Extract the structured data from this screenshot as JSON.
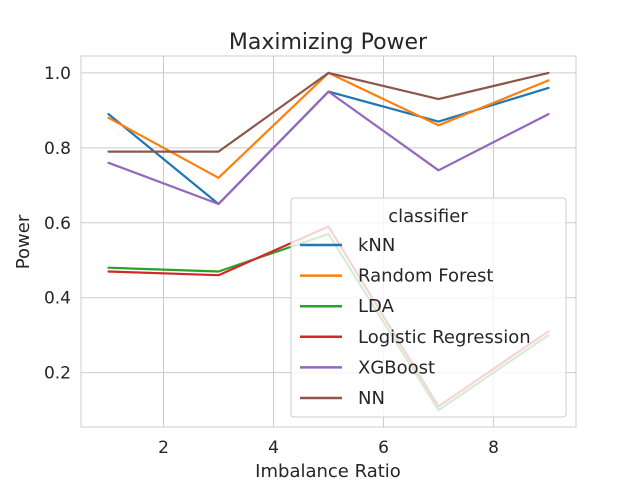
{
  "chart_data": {
    "type": "line",
    "title": "Maximizing Power",
    "xlabel": "Imbalance Ratio",
    "ylabel": "Power",
    "x": [
      1,
      3,
      5,
      7,
      9
    ],
    "xlim": [
      0.5,
      9.5
    ],
    "ylim": [
      0.055,
      1.045
    ],
    "xticks": [
      2,
      4,
      6,
      8
    ],
    "yticks": [
      0.2,
      0.4,
      0.6,
      0.8,
      1.0
    ],
    "xtick_labels": [
      "2",
      "4",
      "6",
      "8"
    ],
    "ytick_labels": [
      "0.2",
      "0.4",
      "0.6",
      "0.8",
      "1.0"
    ],
    "grid": true,
    "legend": {
      "title": "classifier",
      "position": "lower-right"
    },
    "series": [
      {
        "name": "kNN",
        "color": "#1f77b4",
        "values": [
          0.89,
          0.65,
          0.95,
          0.87,
          0.96
        ]
      },
      {
        "name": "Random Forest",
        "color": "#ff7f0e",
        "values": [
          0.88,
          0.72,
          1.0,
          0.86,
          0.98
        ]
      },
      {
        "name": "LDA",
        "color": "#2ca02c",
        "values": [
          0.48,
          0.47,
          0.57,
          0.1,
          0.3
        ]
      },
      {
        "name": "Logistic Regression",
        "color": "#d62728",
        "values": [
          0.47,
          0.46,
          0.59,
          0.11,
          0.31
        ]
      },
      {
        "name": "XGBoost",
        "color": "#9467bd",
        "values": [
          0.76,
          0.65,
          0.95,
          0.74,
          0.89
        ]
      },
      {
        "name": "NN",
        "color": "#8c564b",
        "values": [
          0.79,
          0.79,
          1.0,
          0.93,
          1.0
        ]
      }
    ]
  }
}
